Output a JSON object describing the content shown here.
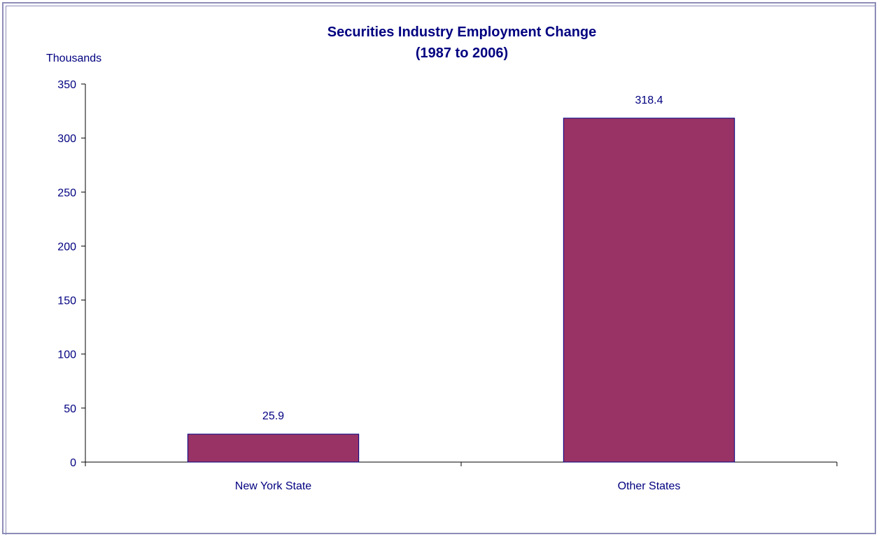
{
  "chart_data": {
    "type": "bar",
    "title": "Securities Industry Employment Change",
    "subtitle": "(1987 to 2006)",
    "ylabel": "Thousands",
    "xlabel": "",
    "categories": [
      "New York State",
      "Other States"
    ],
    "values": [
      25.9,
      318.4
    ],
    "data_labels": [
      "25.9",
      "318.4"
    ],
    "ylim": [
      0,
      350
    ],
    "yticks": [
      0,
      50,
      100,
      150,
      200,
      250,
      300,
      350
    ],
    "grid": false,
    "legend": "none",
    "colors": {
      "bar_fill": "#993366",
      "bar_stroke": "#000080",
      "text": "#000080",
      "axis": "#000000",
      "border": "#8c8cb8"
    }
  }
}
